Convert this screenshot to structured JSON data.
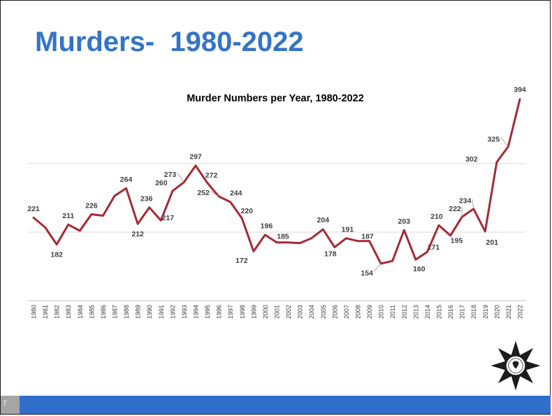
{
  "slide": {
    "title": "Murders-  1980-2022",
    "page_number": "7"
  },
  "colors": {
    "title": "#3474c8",
    "line": "#a52a35",
    "footer": "#2f6fcb",
    "page_box": "#a5a5a5"
  },
  "icons": [
    "sheriff-star-badge-icon"
  ],
  "chart_data": {
    "type": "line",
    "title": "Murder Numbers per Year, 1980-2022",
    "xlabel": "",
    "ylabel": "",
    "ylim": [
      100,
      400
    ],
    "grid": true,
    "legend": "none",
    "x": [
      1980,
      1981,
      1982,
      1983,
      1984,
      1985,
      1986,
      1987,
      1988,
      1989,
      1990,
      1991,
      1992,
      1993,
      1994,
      1995,
      1996,
      1997,
      1998,
      1999,
      2000,
      2001,
      2002,
      2003,
      2004,
      2005,
      2006,
      2007,
      2008,
      2009,
      2010,
      2011,
      2012,
      2013,
      2014,
      2015,
      2016,
      2017,
      2018,
      2019,
      2020,
      2021,
      2022
    ],
    "series": [
      {
        "values": [
          221,
          207,
          182,
          211,
          202,
          226,
          224,
          253,
          264,
          212,
          236,
          217,
          260,
          273,
          297,
          272,
          252,
          244,
          220,
          172,
          196,
          185,
          185,
          184,
          191,
          204,
          178,
          191,
          187,
          187,
          154,
          158,
          203,
          160,
          171,
          210,
          195,
          222,
          234,
          201,
          302,
          325,
          394
        ],
        "labels": [
          "221",
          "",
          "182",
          "211",
          "",
          "226",
          "",
          "",
          "264",
          "212",
          "236",
          "217",
          "260",
          "273",
          "297",
          "272",
          "252",
          "244",
          "220",
          "172",
          "196",
          "185",
          "",
          "",
          "",
          "204",
          "178",
          "191",
          "187",
          "",
          "154",
          "",
          "203",
          "160",
          "171",
          "210",
          "195",
          "222",
          "234",
          "201",
          "302",
          "325",
          "394"
        ]
      }
    ]
  }
}
